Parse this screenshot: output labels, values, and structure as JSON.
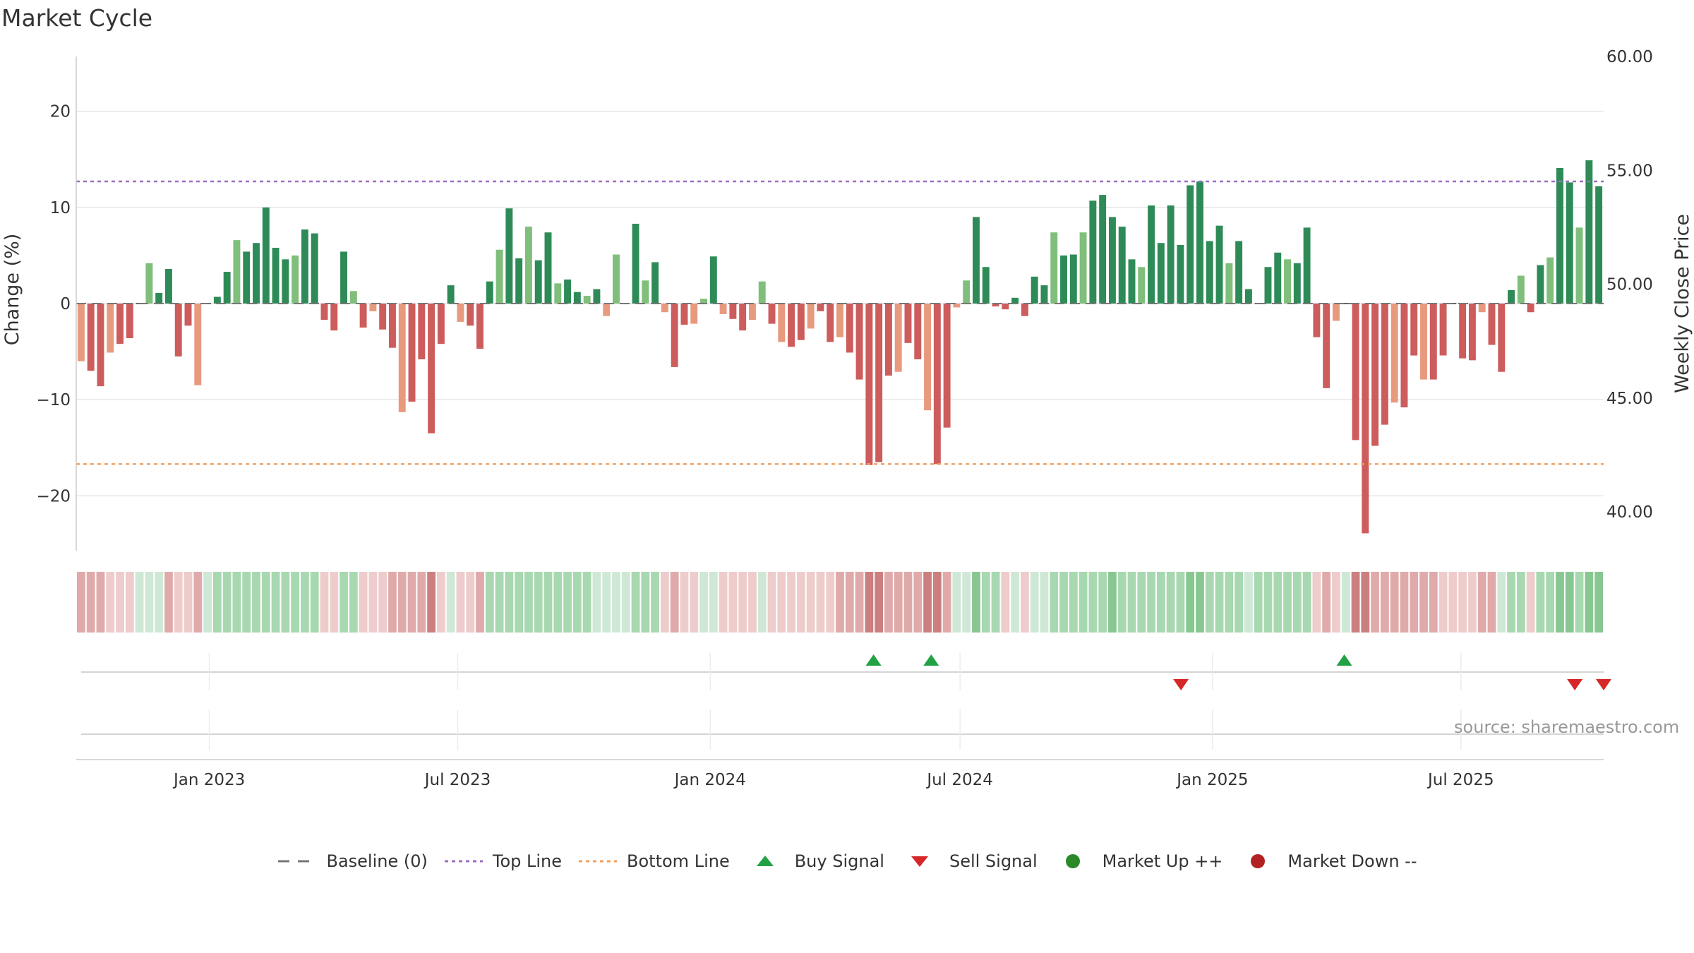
{
  "title": "Market Cycle",
  "source": "source: sharemaestro.com",
  "legend": [
    {
      "label": "Baseline (0)",
      "symbol": "dash",
      "color": "#777777"
    },
    {
      "label": "Top Line",
      "symbol": "dot",
      "color": "#9b6fc3"
    },
    {
      "label": "Bottom Line",
      "symbol": "dot",
      "color": "#f0a060"
    },
    {
      "label": "Buy Signal",
      "symbol": "triangle-up",
      "color": "#22a244"
    },
    {
      "label": "Sell Signal",
      "symbol": "triangle-down",
      "color": "#d62728"
    },
    {
      "label": "Market Up ++",
      "symbol": "circle",
      "color": "#2a8a2a"
    },
    {
      "label": "Market Down --",
      "symbol": "circle",
      "color": "#b22222"
    }
  ],
  "chart_data": {
    "type": "bar",
    "title": "Market Cycle",
    "ylabel": "Change (%)",
    "y2label": "Weekly Close Price",
    "ylim": [
      -25.7,
      25.7
    ],
    "y2lim": [
      38.3,
      60
    ],
    "yticks": [
      20,
      10,
      0,
      -10,
      -20
    ],
    "ytick_labels": [
      "20",
      "10",
      "0",
      "−10",
      "−20"
    ],
    "y2ticks": [
      60,
      55,
      50,
      45,
      40
    ],
    "y2tick_labels": [
      "60.00",
      "55.00",
      "50.00",
      "45.00",
      "40.00"
    ],
    "x_start": "2022-09-26",
    "x_end": "2025-10-13",
    "xticks": [
      "2023-01-01",
      "2023-07-01",
      "2024-01-01",
      "2024-07-01",
      "2025-01-01",
      "2025-07-01"
    ],
    "xtick_labels": [
      "Jan 2023",
      "Jul 2023",
      "Jan 2024",
      "Jul 2024",
      "Jan 2025",
      "Jul 2025"
    ],
    "top_line": 12.7,
    "bottom_line": -16.7,
    "baseline": 0,
    "bars_start_date": "2022-09-26",
    "bars_interval_days": 7,
    "values": [
      -6,
      -7,
      -8.6,
      -5.1,
      -4.2,
      -3.6,
      0,
      4.2,
      1.1,
      3.6,
      -5.5,
      -2.3,
      -8.5,
      0,
      0.7,
      3.3,
      6.6,
      5.4,
      6.3,
      10,
      5.8,
      4.6,
      5,
      7.7,
      7.3,
      -1.7,
      -2.8,
      5.4,
      1.3,
      -2.5,
      -0.8,
      -2.7,
      -4.6,
      -11.3,
      -10.2,
      -5.8,
      -13.5,
      -4.2,
      1.9,
      -1.9,
      -2.3,
      -4.7,
      2.3,
      5.6,
      9.9,
      4.7,
      8,
      4.5,
      7.4,
      2.1,
      2.5,
      1.2,
      0.8,
      1.5,
      -1.3,
      5.1,
      0,
      8.3,
      2.4,
      4.3,
      -0.9,
      -6.6,
      -2.2,
      -2.1,
      0.5,
      4.9,
      -1.1,
      -1.6,
      -2.8,
      -1.7,
      2.3,
      -2.1,
      -4,
      -4.5,
      -3.8,
      -2.6,
      -0.8,
      -4,
      -3.5,
      -5.1,
      -7.9,
      -16.8,
      -16.5,
      -7.5,
      -7.1,
      -4.1,
      -5.8,
      -11.1,
      -16.7,
      -12.9,
      -0.4,
      2.4,
      9,
      3.8,
      -0.3,
      -0.6,
      0.6,
      -1.3,
      2.8,
      1.9,
      7.4,
      5,
      5.1,
      7.4,
      10.7,
      11.3,
      9,
      8,
      4.6,
      3.8,
      10.2,
      6.3,
      10.2,
      6.1,
      12.3,
      12.7,
      6.5,
      8.1,
      4.2,
      6.5,
      1.5,
      0,
      3.8,
      5.3,
      4.6,
      4.2,
      7.9,
      -3.5,
      -8.8,
      -1.8,
      0,
      -14.2,
      -23.9,
      -14.8,
      -12.6,
      -10.3,
      -10.8,
      -5.4,
      -7.9,
      -7.9,
      -5.4,
      0,
      -5.7,
      -5.9,
      -0.9,
      -4.3,
      -7.1,
      1.4,
      2.9,
      -0.9,
      4,
      4.8,
      14.1,
      12.6,
      7.9,
      14.9,
      12.2
    ],
    "regime_strip": [
      "dn2",
      "dn2",
      "dn2",
      "dn1",
      "dn1",
      "dn1",
      "up1",
      "up1",
      "up1",
      "dn2",
      "dn1",
      "dn1",
      "dn2",
      "up1",
      "up2",
      "up2",
      "up2",
      "up2",
      "up2",
      "up2",
      "up2",
      "up2",
      "up2",
      "up2",
      "up2",
      "dn1",
      "dn1",
      "up2",
      "up2",
      "dn1",
      "dn1",
      "dn1",
      "dn2",
      "dn2",
      "dn2",
      "dn2",
      "dn3",
      "dn1",
      "up1",
      "dn1",
      "dn1",
      "dn2",
      "up2",
      "up2",
      "up2",
      "up2",
      "up2",
      "up2",
      "up2",
      "up2",
      "up2",
      "up2",
      "up2",
      "up1",
      "up1",
      "up1",
      "up1",
      "up2",
      "up2",
      "up2",
      "dn1",
      "dn2",
      "dn1",
      "dn1",
      "up1",
      "up1",
      "dn1",
      "dn1",
      "dn1",
      "dn1",
      "up1",
      "dn1",
      "dn1",
      "dn1",
      "dn1",
      "dn1",
      "dn1",
      "dn1",
      "dn2",
      "dn2",
      "dn2",
      "dn3",
      "dn3",
      "dn2",
      "dn2",
      "dn2",
      "dn2",
      "dn3",
      "dn3",
      "dn2",
      "up1",
      "up1",
      "up3",
      "up2",
      "up2",
      "dn1",
      "up1",
      "dn1",
      "up1",
      "up1",
      "up2",
      "up2",
      "up2",
      "up2",
      "up2",
      "up2",
      "up3",
      "up2",
      "up2",
      "up2",
      "up2",
      "up2",
      "up2",
      "up2",
      "up3",
      "up3",
      "up2",
      "up2",
      "up2",
      "up2",
      "up1",
      "up2",
      "up2",
      "up2",
      "up2",
      "up2",
      "up2",
      "dn1",
      "dn2",
      "dn1",
      "up1",
      "dn3",
      "dn3",
      "dn2",
      "dn2",
      "dn2",
      "dn2",
      "dn2",
      "dn2",
      "dn2",
      "dn1",
      "dn1",
      "dn1",
      "dn1",
      "dn2",
      "dn2",
      "up1",
      "up2",
      "up2",
      "dn1",
      "up2",
      "up2",
      "up3",
      "up3",
      "up2",
      "up3",
      "up3"
    ],
    "buy_signals": [
      "2024-04-29",
      "2024-06-10",
      "2025-04-07"
    ],
    "sell_signals": [
      "2024-12-09",
      "2025-09-22",
      "2025-10-13"
    ]
  }
}
